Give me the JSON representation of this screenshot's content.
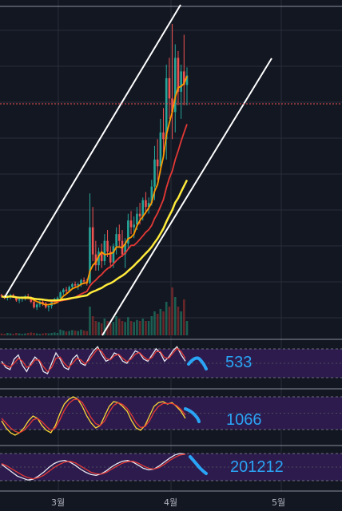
{
  "colors": {
    "background": "#131722",
    "grid": "#2a2e39",
    "up": "#26a69a",
    "down": "#ef5350",
    "ma_orange": "#ff9800",
    "ma_red": "#e53935",
    "ma_yellow": "#ffeb3b",
    "panel_fill": "#2d1b4e",
    "annotation": "#2aa4f4",
    "channel": "#ffffff"
  },
  "chart_data": [
    {
      "type": "candlestick",
      "panel": "price",
      "x_ticks": [
        "3월",
        "4월",
        "5월"
      ],
      "annotations": [
        "parallel rising channel lines (white)",
        "horizontal dotted price line (red)"
      ],
      "ma_series": [
        {
          "color": "#ff9800"
        },
        {
          "color": "#e53935"
        },
        {
          "color": "#ffeb3b"
        }
      ],
      "candles": [
        [
          100,
          101,
          98,
          99
        ],
        [
          99,
          100,
          97,
          98
        ],
        [
          98,
          100,
          96,
          99
        ],
        [
          99,
          101,
          97,
          100
        ],
        [
          100,
          101,
          98,
          98
        ],
        [
          98,
          99,
          95,
          96
        ],
        [
          96,
          98,
          94,
          97
        ],
        [
          97,
          99,
          95,
          98
        ],
        [
          98,
          100,
          96,
          99
        ],
        [
          99,
          101,
          97,
          98
        ],
        [
          98,
          99,
          94,
          95
        ],
        [
          95,
          96,
          90,
          91
        ],
        [
          91,
          94,
          89,
          93
        ],
        [
          93,
          96,
          91,
          95
        ],
        [
          95,
          97,
          92,
          94
        ],
        [
          94,
          95,
          90,
          91
        ],
        [
          91,
          93,
          88,
          92
        ],
        [
          92,
          96,
          90,
          95
        ],
        [
          95,
          98,
          93,
          97
        ],
        [
          97,
          99,
          95,
          98
        ],
        [
          98,
          103,
          97,
          102
        ],
        [
          102,
          105,
          100,
          104
        ],
        [
          104,
          106,
          101,
          103
        ],
        [
          103,
          107,
          102,
          106
        ],
        [
          106,
          109,
          104,
          108
        ],
        [
          108,
          110,
          105,
          107
        ],
        [
          107,
          109,
          104,
          108
        ],
        [
          108,
          112,
          106,
          111
        ],
        [
          111,
          113,
          108,
          110
        ],
        [
          110,
          112,
          107,
          109
        ],
        [
          109,
          175,
          108,
          150
        ],
        [
          150,
          165,
          125,
          130
        ],
        [
          130,
          140,
          118,
          122
        ],
        [
          122,
          135,
          118,
          132
        ],
        [
          132,
          138,
          120,
          125
        ],
        [
          125,
          145,
          122,
          140
        ],
        [
          140,
          148,
          128,
          132
        ],
        [
          132,
          136,
          120,
          124
        ],
        [
          124,
          138,
          120,
          136
        ],
        [
          136,
          150,
          130,
          145
        ],
        [
          145,
          152,
          135,
          140
        ],
        [
          140,
          148,
          128,
          130
        ],
        [
          130,
          142,
          120,
          138
        ],
        [
          138,
          160,
          134,
          155
        ],
        [
          155,
          162,
          145,
          150
        ],
        [
          150,
          158,
          142,
          152
        ],
        [
          152,
          165,
          148,
          160
        ],
        [
          160,
          168,
          152,
          158
        ],
        [
          158,
          172,
          155,
          170
        ],
        [
          170,
          176,
          160,
          165
        ],
        [
          165,
          172,
          160,
          168
        ],
        [
          168,
          185,
          166,
          180
        ],
        [
          180,
          210,
          170,
          200
        ],
        [
          200,
          215,
          185,
          195
        ],
        [
          195,
          230,
          190,
          220
        ],
        [
          220,
          238,
          205,
          215
        ],
        [
          215,
          270,
          200,
          260
        ],
        [
          260,
          275,
          230,
          245
        ],
        [
          245,
          300,
          215,
          235
        ],
        [
          235,
          285,
          220,
          275
        ],
        [
          275,
          280,
          240,
          250
        ],
        [
          250,
          270,
          230,
          265
        ],
        [
          265,
          292,
          240,
          255
        ],
        [
          255,
          268,
          240,
          262
        ]
      ],
      "volumes": [
        4,
        3,
        5,
        4,
        3,
        5,
        4,
        3,
        4,
        5,
        6,
        5,
        4,
        3,
        4,
        5,
        4,
        5,
        6,
        5,
        12,
        10,
        8,
        9,
        11,
        10,
        9,
        12,
        10,
        9,
        60,
        40,
        30,
        28,
        25,
        35,
        30,
        25,
        28,
        40,
        35,
        30,
        28,
        38,
        30,
        28,
        32,
        30,
        35,
        30,
        30,
        40,
        50,
        45,
        55,
        50,
        70,
        60,
        100,
        80,
        60,
        50,
        75,
        30
      ]
    },
    {
      "type": "line",
      "panel": "oscillator",
      "label": "533",
      "series": [
        {
          "color": "#e8e8f0",
          "values": [
            55,
            40,
            35,
            60,
            70,
            45,
            30,
            50,
            65,
            55,
            30,
            25,
            50,
            75,
            60,
            40,
            35,
            60,
            70,
            50,
            45,
            65,
            80,
            90,
            70,
            55,
            60,
            75,
            70,
            55,
            50,
            65,
            80,
            75,
            60,
            55,
            70,
            85,
            75,
            55,
            65,
            80,
            90,
            70,
            55
          ]
        },
        {
          "color": "#e53935",
          "values": [
            50,
            45,
            40,
            50,
            62,
            55,
            40,
            45,
            58,
            58,
            42,
            30,
            40,
            62,
            65,
            50,
            40,
            50,
            62,
            58,
            48,
            58,
            72,
            85,
            78,
            62,
            58,
            68,
            72,
            62,
            54,
            60,
            72,
            76,
            66,
            58,
            64,
            78,
            78,
            64,
            62,
            74,
            86,
            78,
            62
          ]
        }
      ]
    },
    {
      "type": "line",
      "panel": "oscillator",
      "label": "1066",
      "series": [
        {
          "color": "#fdd835",
          "values": [
            40,
            25,
            15,
            10,
            15,
            25,
            40,
            50,
            45,
            30,
            20,
            15,
            30,
            55,
            75,
            85,
            90,
            85,
            70,
            50,
            35,
            25,
            30,
            50,
            70,
            80,
            78,
            70,
            60,
            40,
            25,
            20,
            30,
            50,
            70,
            78,
            80,
            75,
            78,
            70,
            60,
            45
          ]
        },
        {
          "color": "#e53935",
          "values": [
            45,
            35,
            25,
            18,
            15,
            20,
            30,
            42,
            45,
            38,
            28,
            20,
            25,
            42,
            62,
            76,
            84,
            85,
            78,
            62,
            46,
            34,
            30,
            40,
            58,
            72,
            78,
            74,
            66,
            52,
            36,
            26,
            28,
            40,
            58,
            70,
            76,
            76,
            76,
            72,
            64,
            52
          ]
        }
      ]
    },
    {
      "type": "line",
      "panel": "oscillator",
      "label": "201212",
      "series": [
        {
          "color": "#e8e8f0",
          "values": [
            60,
            50,
            40,
            30,
            25,
            20,
            22,
            30,
            40,
            52,
            62,
            68,
            70,
            66,
            58,
            48,
            40,
            34,
            32,
            36,
            44,
            54,
            62,
            68,
            70,
            66,
            58,
            50,
            46,
            48,
            56,
            66,
            76,
            84,
            88,
            86
          ]
        },
        {
          "color": "#e53935",
          "values": [
            62,
            56,
            48,
            40,
            32,
            26,
            23,
            26,
            32,
            42,
            52,
            60,
            66,
            68,
            64,
            56,
            48,
            40,
            36,
            35,
            40,
            48,
            56,
            63,
            67,
            68,
            63,
            56,
            50,
            48,
            52,
            60,
            70,
            78,
            84,
            86
          ]
        }
      ]
    }
  ]
}
